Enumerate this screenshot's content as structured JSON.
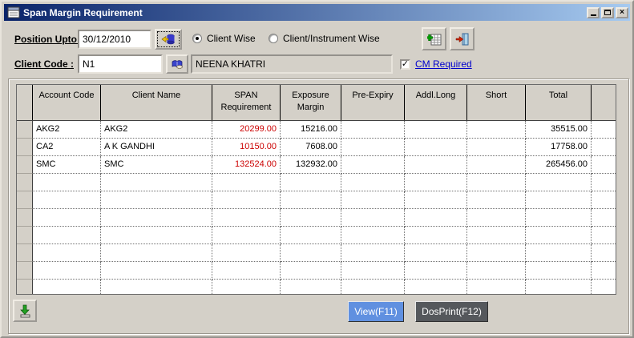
{
  "window": {
    "title": "Span Margin Requirement"
  },
  "filters": {
    "position_label": "Position Upto:",
    "position_value": "30/12/2010",
    "view_mode": {
      "options": [
        "Client Wise",
        "Client/Instrument Wise"
      ],
      "selected": "Client Wise"
    },
    "client_code_label": "Client Code :",
    "client_code_value": "N1",
    "client_name": "NEENA KHATRI",
    "cm_required": {
      "label": "CM Required",
      "checked": true
    }
  },
  "grid": {
    "columns": [
      "",
      "Account Code",
      "Client Name",
      "SPAN Requirement",
      "Exposure Margin",
      "Pre-Expiry",
      "Addl.Long",
      "Short",
      "Total",
      ""
    ],
    "rows": [
      {
        "account_code": "AKG2",
        "client_name": "AKG2",
        "span_requirement": "20299.00",
        "exposure_margin": "15216.00",
        "pre_expiry": "",
        "addl_long": "",
        "short": "",
        "total": "35515.00"
      },
      {
        "account_code": "CA2",
        "client_name": "A K GANDHI",
        "span_requirement": "10150.00",
        "exposure_margin": "7608.00",
        "pre_expiry": "",
        "addl_long": "",
        "short": "",
        "total": "17758.00"
      },
      {
        "account_code": "SMC",
        "client_name": "SMC",
        "span_requirement": "132524.00",
        "exposure_margin": "132932.00",
        "pre_expiry": "",
        "addl_long": "",
        "short": "",
        "total": "265456.00"
      }
    ],
    "empty_row_count": 7
  },
  "actions": {
    "view": "View(F11)",
    "dosprint": "DosPrint(F12)"
  },
  "icons": {
    "close_glyph": "×",
    "check_glyph": "✓"
  },
  "colors": {
    "span_value": "#cc0000",
    "view_button": "#6090e0",
    "dosprint_button": "#55585c",
    "link": "#0000cc",
    "titlebar_start": "#0a246a",
    "titlebar_end": "#a6caf0",
    "button_face": "#d4d0c8"
  }
}
